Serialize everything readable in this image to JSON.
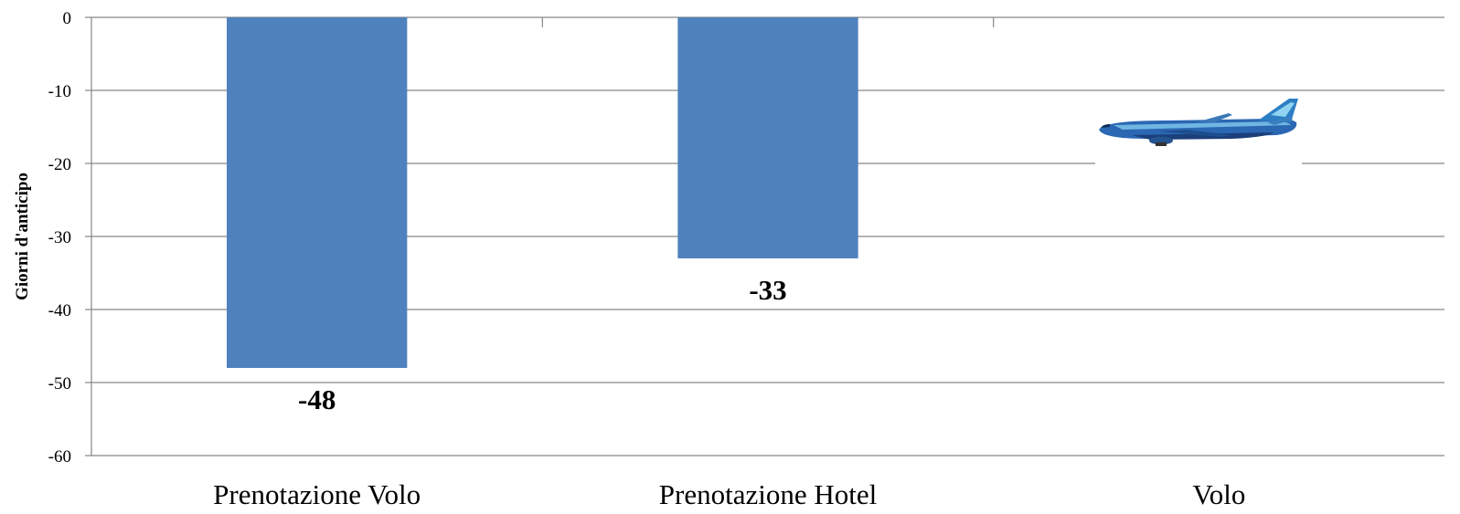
{
  "chart_data": {
    "type": "bar",
    "title": "",
    "xlabel": "",
    "ylabel": "Giorni d'anticipo",
    "ylim": [
      -60,
      0
    ],
    "yticks": [
      0,
      -10,
      -20,
      -30,
      -40,
      -50,
      -60
    ],
    "ytick_labels": [
      "0",
      "-10",
      "-20",
      "-30",
      "-40",
      "-50",
      "-60"
    ],
    "grid": true,
    "categories": [
      "Prenotazione Volo",
      "Prenotazione Hotel",
      "Volo"
    ],
    "values": [
      -48,
      -33,
      0
    ],
    "value_labels": [
      "-48",
      "-33",
      ""
    ],
    "bar_color": "#4F81BD",
    "annotation_icon": "airplane-image"
  }
}
